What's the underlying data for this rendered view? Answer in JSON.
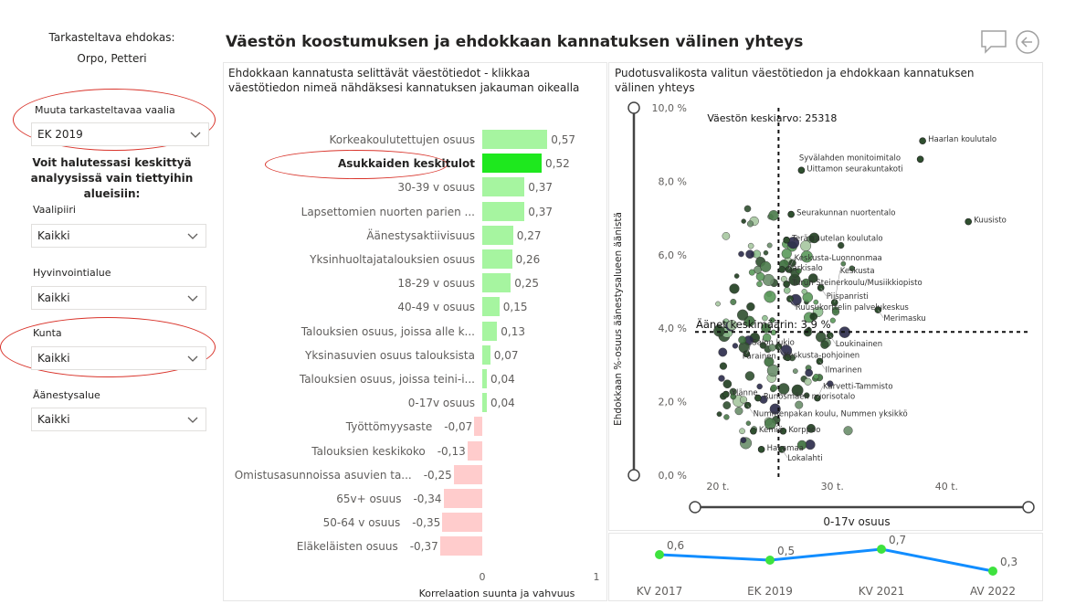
{
  "sidebar": {
    "candidate_label": "Tarkasteltava ehdokas:",
    "candidate_name": "Orpo, Petteri",
    "election_slicer": {
      "label": "Muuta tarkasteltavaa vaalia",
      "value": "EK 2019"
    },
    "focus_text": "Voit halutessasi keskittyä analyysissä vain tiettyihin alueisiin:",
    "slicers": [
      {
        "label": "Vaalipiiri",
        "value": "Kaikki"
      },
      {
        "label": "Hyvinvointialue",
        "value": "Kaikki"
      },
      {
        "label": "Kunta",
        "value": "Kaikki"
      },
      {
        "label": "Äänestysalue",
        "value": "Kaikki"
      }
    ]
  },
  "header": {
    "title": "Väestön koostumuksen ja ehdokkaan kannatuksen välinen yhteys",
    "comment_icon": "comment-icon",
    "back_icon": "back-arrow-icon"
  },
  "colors": {
    "positive_bar": "#a6f5a0",
    "selected_bar": "#1ee81e",
    "negative_bar": "#ffcccc",
    "annotation": "#d9342b",
    "line": "#118dff",
    "line_marker": "#3ee23e"
  },
  "chart_data": [
    {
      "type": "bar",
      "title": "Ehdokkaan kannatusta selittävät väestötiedot - klikkaa väestötiedon nimeä nähdäksesi kannatuksen jakauman oikealla",
      "xlabel": "Korrelaation suunta ja vahvuus",
      "xlim": [
        -0.45,
        1
      ],
      "xticks": [
        "0",
        "1"
      ],
      "selected": "Asukkaiden keskitulot",
      "categories": [
        "Korkeakoulutettujen osuus",
        "Asukkaiden keskitulot",
        "30-39 v osuus",
        "Lapsettomien nuorten parien ...",
        "Äänestysaktiivisuus",
        "Yksinhuoltajatalouksien osuus",
        "18-29 v osuus",
        "40-49 v osuus",
        "Talouksien osuus, joissa alle k...",
        "Yksinasuvien osuus talouksista",
        "Talouksien osuus, joissa teini-i...",
        "0-17v osuus",
        "Työttömyysaste",
        "Talouksien keskikoko",
        "Omistusasunnoissa asuvien ta...",
        "65v+ osuus",
        "50-64 v osuus",
        "Eläkeläisten osuus"
      ],
      "values": [
        0.57,
        0.52,
        0.37,
        0.37,
        0.27,
        0.26,
        0.25,
        0.15,
        0.13,
        0.07,
        0.04,
        0.04,
        -0.07,
        -0.13,
        -0.25,
        -0.34,
        -0.35,
        -0.37
      ],
      "labels": [
        "0,57",
        "0,52",
        "0,37",
        "0,37",
        "0,27",
        "0,26",
        "0,25",
        "0,15",
        "0,13",
        "0,07",
        "0,04",
        "0,04",
        "-0,07",
        "-0,13",
        "-0,25",
        "-0,34",
        "-0,35",
        "-0,37"
      ]
    },
    {
      "type": "scatter",
      "title": "Pudotusvalikosta valitun väestötiedon ja ehdokkaan kannatuksen välinen yhteys",
      "xlabel": "0-17v osuus",
      "ylabel": "Ehdokkaan %-osuus äänestysalueen äänistä",
      "xlim": [
        18,
        45
      ],
      "ylim": [
        0,
        10
      ],
      "xticks": [
        "20 t.",
        "30 t.",
        "40 t."
      ],
      "yticks": [
        "0,0 %",
        "2,0 %",
        "4,0 %",
        "6,0 %",
        "8,0 %",
        "10,0 %"
      ],
      "x_ref_label": "Väestön keskiarvo: 25318",
      "x_ref": 25.3,
      "y_ref_label": "Äänet keskimäärin: 3,9 %",
      "y_ref": 3.9,
      "points": [
        {
          "label": "Haarlan koulutalo",
          "x": 37.9,
          "y": 9.1
        },
        {
          "label": "Syvälahden monitoimitalo",
          "x": 37.7,
          "y": 8.6
        },
        {
          "label": "Uittamon seurakuntakoti",
          "x": 27.3,
          "y": 8.3
        },
        {
          "label": "Seurakunnan nuortentalo",
          "x": 26.4,
          "y": 7.1
        },
        {
          "label": "Kuusisto",
          "x": 41.9,
          "y": 6.9
        },
        {
          "label": "Teräsrautelan koulutalo",
          "x": 26.0,
          "y": 6.4
        },
        {
          "label": "Särkisalo",
          "x": 25.6,
          "y": 5.6
        },
        {
          "label": "Keskusta-Luonnonmaa",
          "x": 26.2,
          "y": 5.6
        },
        {
          "label": "Turun Steinerkoulu/Musiikkiopisto",
          "x": 26.0,
          "y": 5.2
        },
        {
          "label": "Piispanristi",
          "x": 29.0,
          "y": 5.1
        },
        {
          "label": "Ruusukorttelin palvelukeskus",
          "x": 26.3,
          "y": 4.8
        },
        {
          "label": "Keskusta",
          "x": 30.2,
          "y": 4.7
        },
        {
          "label": "Merimasku",
          "x": 34.0,
          "y": 4.5
        },
        {
          "label": "Loukinainen",
          "x": 29.8,
          "y": 3.8
        },
        {
          "label": "Keskusta-pohjoinen",
          "x": 25.3,
          "y": 3.5
        },
        {
          "label": "Salon lukio",
          "x": 22.5,
          "y": 3.3
        },
        {
          "label": "Parainen",
          "x": 26.1,
          "y": 3.2
        },
        {
          "label": "Ilmarinen",
          "x": 28.9,
          "y": 3.1
        },
        {
          "label": "Ylänne",
          "x": 20.7,
          "y": 2.2
        },
        {
          "label": "Runosmäen nuorisotalo",
          "x": 23.5,
          "y": 2.1
        },
        {
          "label": "Karvetti-Tammisto",
          "x": 28.7,
          "y": 2.1
        },
        {
          "label": "Nummenpakan koulu, Nummen yksikkö",
          "x": 22.6,
          "y": 1.9
        },
        {
          "label": "Korppoo",
          "x": 25.7,
          "y": 1.2
        },
        {
          "label": "Kemiö",
          "x": 23.1,
          "y": 1.2
        },
        {
          "label": "Hakamaa",
          "x": 23.8,
          "y": 0.7
        },
        {
          "label": "Lokalahti",
          "x": 25.6,
          "y": 0.7
        }
      ]
    },
    {
      "type": "line",
      "categories": [
        "KV 2017",
        "EK 2019",
        "KV 2021",
        "AV 2022"
      ],
      "values": [
        0.6,
        0.5,
        0.7,
        0.3
      ],
      "labels": [
        "0,6",
        "0,5",
        "0,7",
        "0,3"
      ]
    }
  ]
}
